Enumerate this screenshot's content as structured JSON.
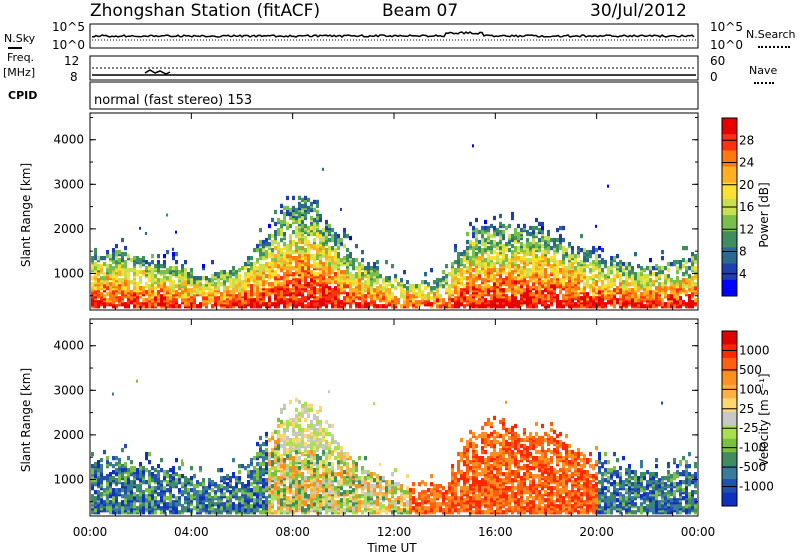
{
  "header": {
    "station": "Zhongshan Station (fitACF)",
    "beam": "Beam 07",
    "date": "30/Jul/2012"
  },
  "status_panels": {
    "nsky_label": "N.Sky",
    "nsky_ticks": [
      "10^5",
      "10^0"
    ],
    "nsearch_label": "N.Search",
    "nsearch_ticks": [
      "10^5",
      "10^0"
    ],
    "freq_label": "Freq.",
    "freq_unit": "[MHz]",
    "freq_ticks": [
      "12",
      "8"
    ],
    "nave_label": "Nave",
    "nave_ticks": [
      "60",
      "0"
    ],
    "cpid_label": "CPID",
    "cpid_text": "normal (fast stereo) 153"
  },
  "chart_data": [
    {
      "type": "heatmap",
      "name": "power",
      "ylabel": "Slant Range [km]",
      "xlabel": "",
      "yticks": [
        "4000",
        "3000",
        "2000",
        "1000"
      ],
      "ylim": [
        180,
        4600
      ],
      "xlim_hours": [
        0,
        24
      ],
      "colorbar": {
        "label": "Power [dB]",
        "ticks": [
          "28",
          "24",
          "20",
          "16",
          "12",
          "8",
          "4"
        ],
        "range": [
          0,
          32
        ],
        "colors": [
          "#0000ff",
          "#1f3fb0",
          "#2a6a8c",
          "#3e8f60",
          "#78c04a",
          "#c8e050",
          "#ffe030",
          "#ffb020",
          "#ff7810",
          "#ff3010",
          "#e80000"
        ]
      }
    },
    {
      "type": "heatmap",
      "name": "velocity",
      "ylabel": "Slant Range [km]",
      "xlabel": "Time UT",
      "xticks": [
        "00:00",
        "04:00",
        "08:00",
        "12:00",
        "16:00",
        "20:00",
        "00:00"
      ],
      "yticks": [
        "4000",
        "3000",
        "2000",
        "1000"
      ],
      "ylim": [
        180,
        4600
      ],
      "xlim_hours": [
        0,
        24
      ],
      "colorbar": {
        "label": "Velocity [m s⁻¹]",
        "ticks": [
          "1000",
          "500",
          "100",
          "25",
          "-25",
          "-100",
          "-500",
          "-1000"
        ],
        "colors": [
          "#1030c0",
          "#2050b0",
          "#3a7a9a",
          "#408c60",
          "#7cc040",
          "#a8e050",
          "#c8c8c8",
          "#ffd870",
          "#ffb040",
          "#ff9020",
          "#ff6010",
          "#ff2800",
          "#e00000"
        ]
      }
    }
  ],
  "colors": {
    "background": "#ffffff",
    "axis": "#000000"
  }
}
